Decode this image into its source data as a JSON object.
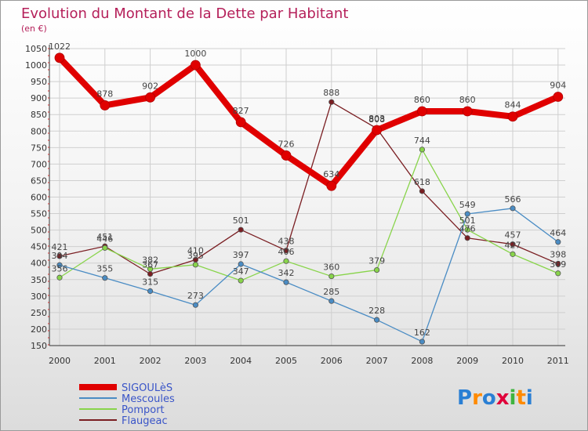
{
  "chart_data": {
    "type": "line",
    "title": "Evolution du Montant de la Dette par Habitant",
    "subtitle": "(en €)",
    "x": [
      "2000",
      "2001",
      "2002",
      "2003",
      "2004",
      "2005",
      "2006",
      "2007",
      "2008",
      "2009",
      "2010",
      "2011"
    ],
    "yticks": [
      "150",
      "200",
      "250",
      "300",
      "350",
      "400",
      "450",
      "500",
      "550",
      "600",
      "650",
      "700",
      "750",
      "800",
      "850",
      "900",
      "950",
      "1000",
      "1050"
    ],
    "ylim": [
      150,
      1050
    ],
    "grid": true,
    "legend_position": "bottom-left",
    "series": [
      {
        "name": "SIGOULèS",
        "color": "#e00000",
        "values": [
          1022,
          878,
          902,
          1000,
          827,
          726,
          634,
          803,
          860,
          860,
          844,
          904
        ]
      },
      {
        "name": "Mescoules",
        "color": "#4a8cc4",
        "values": [
          394,
          355,
          315,
          273,
          397,
          342,
          285,
          228,
          162,
          549,
          566,
          464
        ]
      },
      {
        "name": "Pomport",
        "color": "#88d44a",
        "values": [
          356,
          446,
          382,
          395,
          347,
          406,
          360,
          379,
          744,
          501,
          427,
          369
        ]
      },
      {
        "name": "Flaugeac",
        "color": "#7a1e22",
        "values": [
          421,
          451,
          367,
          410,
          501,
          438,
          888,
          808,
          618,
          476,
          457,
          398
        ]
      }
    ]
  },
  "brand": "Proxiti"
}
